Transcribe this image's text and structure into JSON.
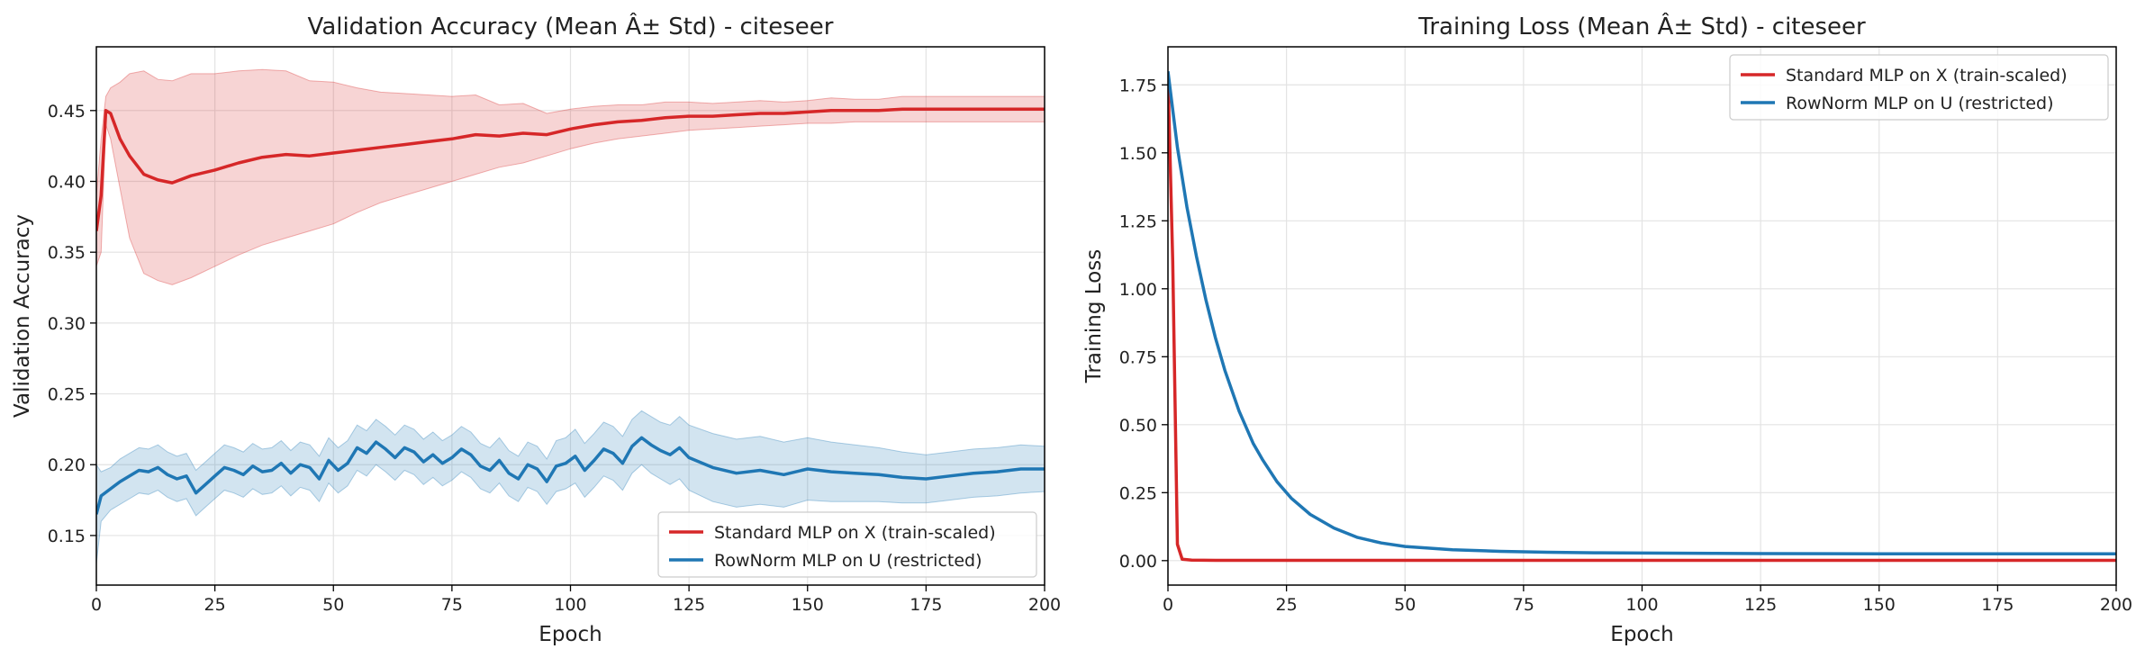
{
  "chart_data": [
    {
      "type": "line",
      "title": "Validation Accuracy (Mean Â± Std) - citeseer",
      "xlabel": "Epoch",
      "ylabel": "Validation Accuracy",
      "xlim": [
        0,
        200
      ],
      "ylim": [
        0.115,
        0.495
      ],
      "xticks": [
        0,
        25,
        50,
        75,
        100,
        125,
        150,
        175,
        200
      ],
      "yticks": [
        0.15,
        0.2,
        0.25,
        0.3,
        0.35,
        0.4,
        0.45
      ],
      "grid": true,
      "legend": "lower-right",
      "series": [
        {
          "name": "Standard MLP on X (train-scaled)",
          "color": "#d62728",
          "x": [
            0,
            1,
            2,
            3,
            5,
            7,
            10,
            13,
            16,
            20,
            25,
            30,
            35,
            40,
            45,
            50,
            55,
            60,
            65,
            70,
            75,
            80,
            85,
            90,
            95,
            100,
            105,
            110,
            115,
            120,
            125,
            130,
            135,
            140,
            145,
            150,
            155,
            160,
            165,
            170,
            175,
            180,
            185,
            190,
            195,
            200
          ],
          "mean": [
            0.365,
            0.39,
            0.45,
            0.448,
            0.43,
            0.418,
            0.405,
            0.401,
            0.399,
            0.404,
            0.408,
            0.413,
            0.417,
            0.419,
            0.418,
            0.42,
            0.422,
            0.424,
            0.426,
            0.428,
            0.43,
            0.433,
            0.432,
            0.434,
            0.433,
            0.437,
            0.44,
            0.442,
            0.443,
            0.445,
            0.446,
            0.446,
            0.447,
            0.448,
            0.448,
            0.449,
            0.45,
            0.45,
            0.45,
            0.451,
            0.451,
            0.451,
            0.451,
            0.451,
            0.451,
            0.451
          ],
          "std_low": [
            0.34,
            0.35,
            0.44,
            0.43,
            0.395,
            0.36,
            0.335,
            0.33,
            0.327,
            0.332,
            0.34,
            0.348,
            0.355,
            0.36,
            0.365,
            0.37,
            0.378,
            0.385,
            0.39,
            0.395,
            0.4,
            0.405,
            0.41,
            0.413,
            0.418,
            0.423,
            0.427,
            0.43,
            0.432,
            0.434,
            0.436,
            0.437,
            0.438,
            0.439,
            0.44,
            0.441,
            0.441,
            0.442,
            0.442,
            0.442,
            0.442,
            0.442,
            0.442,
            0.442,
            0.442,
            0.442
          ],
          "std_high": [
            0.39,
            0.43,
            0.46,
            0.466,
            0.47,
            0.476,
            0.478,
            0.472,
            0.471,
            0.476,
            0.476,
            0.478,
            0.479,
            0.478,
            0.471,
            0.47,
            0.466,
            0.463,
            0.462,
            0.461,
            0.46,
            0.461,
            0.454,
            0.455,
            0.448,
            0.451,
            0.453,
            0.454,
            0.454,
            0.456,
            0.456,
            0.455,
            0.456,
            0.457,
            0.456,
            0.457,
            0.459,
            0.458,
            0.458,
            0.46,
            0.46,
            0.46,
            0.46,
            0.46,
            0.46,
            0.46
          ]
        },
        {
          "name": "RowNorm MLP on U (restricted)",
          "color": "#1f77b4",
          "x": [
            0,
            1,
            3,
            5,
            7,
            9,
            11,
            13,
            15,
            17,
            19,
            21,
            23,
            25,
            27,
            29,
            31,
            33,
            35,
            37,
            39,
            41,
            43,
            45,
            47,
            49,
            51,
            53,
            55,
            57,
            59,
            61,
            63,
            65,
            67,
            69,
            71,
            73,
            75,
            77,
            79,
            81,
            83,
            85,
            87,
            89,
            91,
            93,
            95,
            97,
            99,
            101,
            103,
            105,
            107,
            109,
            111,
            113,
            115,
            117,
            119,
            121,
            123,
            125,
            130,
            135,
            140,
            145,
            150,
            155,
            160,
            165,
            170,
            175,
            180,
            185,
            190,
            195,
            200
          ],
          "mean": [
            0.165,
            0.178,
            0.183,
            0.188,
            0.192,
            0.196,
            0.195,
            0.198,
            0.193,
            0.19,
            0.192,
            0.18,
            0.186,
            0.192,
            0.198,
            0.196,
            0.193,
            0.199,
            0.195,
            0.196,
            0.201,
            0.194,
            0.2,
            0.198,
            0.19,
            0.203,
            0.196,
            0.201,
            0.212,
            0.208,
            0.216,
            0.211,
            0.205,
            0.212,
            0.209,
            0.202,
            0.207,
            0.201,
            0.205,
            0.211,
            0.207,
            0.199,
            0.196,
            0.203,
            0.194,
            0.19,
            0.2,
            0.197,
            0.188,
            0.199,
            0.201,
            0.206,
            0.196,
            0.203,
            0.211,
            0.208,
            0.201,
            0.213,
            0.219,
            0.214,
            0.21,
            0.207,
            0.212,
            0.205,
            0.198,
            0.194,
            0.196,
            0.193,
            0.197,
            0.195,
            0.194,
            0.193,
            0.191,
            0.19,
            0.192,
            0.194,
            0.195,
            0.197,
            0.197
          ],
          "std_low": [
            0.13,
            0.16,
            0.168,
            0.172,
            0.176,
            0.18,
            0.179,
            0.182,
            0.177,
            0.174,
            0.176,
            0.164,
            0.17,
            0.176,
            0.182,
            0.18,
            0.177,
            0.183,
            0.179,
            0.18,
            0.185,
            0.178,
            0.184,
            0.182,
            0.174,
            0.187,
            0.18,
            0.185,
            0.196,
            0.192,
            0.2,
            0.195,
            0.189,
            0.196,
            0.193,
            0.186,
            0.191,
            0.185,
            0.189,
            0.195,
            0.191,
            0.183,
            0.18,
            0.187,
            0.178,
            0.174,
            0.184,
            0.181,
            0.172,
            0.181,
            0.183,
            0.187,
            0.177,
            0.184,
            0.192,
            0.189,
            0.182,
            0.194,
            0.2,
            0.194,
            0.19,
            0.186,
            0.19,
            0.182,
            0.174,
            0.17,
            0.172,
            0.17,
            0.175,
            0.174,
            0.174,
            0.174,
            0.173,
            0.173,
            0.175,
            0.177,
            0.178,
            0.18,
            0.181
          ],
          "std_high": [
            0.2,
            0.195,
            0.198,
            0.204,
            0.208,
            0.212,
            0.211,
            0.214,
            0.209,
            0.206,
            0.208,
            0.196,
            0.202,
            0.208,
            0.214,
            0.212,
            0.209,
            0.215,
            0.211,
            0.212,
            0.217,
            0.21,
            0.216,
            0.214,
            0.206,
            0.219,
            0.212,
            0.217,
            0.228,
            0.224,
            0.232,
            0.227,
            0.221,
            0.228,
            0.225,
            0.218,
            0.223,
            0.217,
            0.221,
            0.227,
            0.223,
            0.215,
            0.212,
            0.219,
            0.21,
            0.206,
            0.216,
            0.213,
            0.204,
            0.217,
            0.219,
            0.225,
            0.215,
            0.222,
            0.23,
            0.227,
            0.22,
            0.232,
            0.238,
            0.234,
            0.23,
            0.228,
            0.234,
            0.228,
            0.222,
            0.218,
            0.22,
            0.216,
            0.219,
            0.216,
            0.214,
            0.212,
            0.209,
            0.207,
            0.209,
            0.211,
            0.212,
            0.214,
            0.213
          ]
        }
      ]
    },
    {
      "type": "line",
      "title": "Training Loss (Mean Â± Std) - citeseer",
      "xlabel": "Epoch",
      "ylabel": "Training Loss",
      "xlim": [
        0,
        200
      ],
      "ylim": [
        -0.09,
        1.89
      ],
      "xticks": [
        0,
        25,
        50,
        75,
        100,
        125,
        150,
        175,
        200
      ],
      "yticks": [
        0.0,
        0.25,
        0.5,
        0.75,
        1.0,
        1.25,
        1.5,
        1.75
      ],
      "grid": true,
      "legend": "top-right",
      "series": [
        {
          "name": "Standard MLP on X (train-scaled)",
          "color": "#d62728",
          "x": [
            0,
            1,
            2,
            3,
            5,
            10,
            25,
            50,
            100,
            150,
            200
          ],
          "mean": [
            1.79,
            1.1,
            0.06,
            0.005,
            0.002,
            0.001,
            0.001,
            0.001,
            0.001,
            0.001,
            0.001
          ]
        },
        {
          "name": "RowNorm MLP on U (restricted)",
          "color": "#1f77b4",
          "x": [
            0,
            2,
            4,
            6,
            8,
            10,
            12,
            15,
            18,
            20,
            23,
            26,
            30,
            35,
            40,
            45,
            50,
            60,
            70,
            80,
            90,
            100,
            115,
            125,
            150,
            175,
            200
          ],
          "mean": [
            1.8,
            1.52,
            1.3,
            1.12,
            0.96,
            0.82,
            0.7,
            0.55,
            0.43,
            0.37,
            0.29,
            0.23,
            0.17,
            0.12,
            0.085,
            0.065,
            0.052,
            0.04,
            0.034,
            0.031,
            0.029,
            0.028,
            0.027,
            0.026,
            0.025,
            0.025,
            0.025
          ]
        }
      ]
    }
  ]
}
